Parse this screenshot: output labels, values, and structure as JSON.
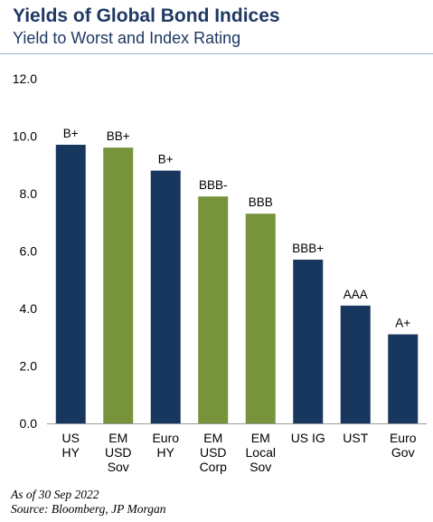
{
  "header": {
    "title": "Yields of Global Bond Indices",
    "subtitle": "Yield to Worst and Index Rating"
  },
  "footnotes": {
    "as_of": "As of 30 Sep 2022",
    "source": "Source: Bloomberg, JP Morgan"
  },
  "colors": {
    "navy": "#17375e",
    "green": "#77933c",
    "title": "#1f3864",
    "axis": "#999999"
  },
  "chart_data": {
    "type": "bar",
    "title": "Yields of Global Bond Indices",
    "subtitle": "Yield to Worst and Index Rating",
    "categories": [
      [
        "US",
        "HY"
      ],
      [
        "EM",
        "USD",
        "Sov"
      ],
      [
        "Euro",
        "HY"
      ],
      [
        "EM",
        "USD",
        "Corp"
      ],
      [
        "EM",
        "Local",
        "Sov"
      ],
      [
        "US IG"
      ],
      [
        "UST"
      ],
      [
        "Euro",
        "Gov"
      ]
    ],
    "values": [
      9.7,
      9.6,
      8.8,
      7.9,
      7.3,
      5.7,
      4.1,
      3.1
    ],
    "ratings": [
      "B+",
      "BB+",
      "B+",
      "BBB-",
      "BBB",
      "BBB+",
      "AAA",
      "A+"
    ],
    "bar_colors": [
      "navy",
      "green",
      "navy",
      "green",
      "green",
      "navy",
      "navy",
      "navy"
    ],
    "yticks": [
      "0.0",
      "2.0",
      "4.0",
      "6.0",
      "8.0",
      "10.0",
      "12.0"
    ],
    "ylim": [
      0,
      12
    ],
    "xlabel": "",
    "ylabel": "",
    "grid": false,
    "legend": false
  }
}
